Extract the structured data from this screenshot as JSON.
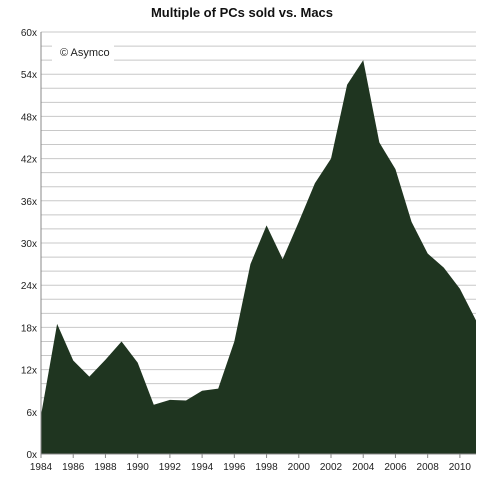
{
  "chart_data": {
    "type": "area",
    "title": "Multiple of PCs sold vs. Macs",
    "annotation": "© Asymco",
    "xlabel": "",
    "ylabel": "",
    "x": [
      1984,
      1985,
      1986,
      1987,
      1988,
      1989,
      1990,
      1991,
      1992,
      1993,
      1994,
      1995,
      1996,
      1997,
      1998,
      1999,
      2000,
      2001,
      2002,
      2003,
      2004,
      2005,
      2006,
      2007,
      2008,
      2009,
      2010,
      2011
    ],
    "series": [
      {
        "name": "",
        "values": [
          5.5,
          18.5,
          13.3,
          11,
          13.4,
          16,
          13,
          7,
          7.7,
          7.6,
          9,
          9.3,
          16,
          27,
          32.5,
          27.7,
          33,
          38.5,
          42,
          52.5,
          56,
          44.3,
          40.5,
          33,
          28.5,
          26.5,
          23.5,
          19
        ]
      }
    ],
    "xlim": [
      1984,
      2011
    ],
    "ylim": [
      0,
      60
    ],
    "y_ticks": [
      0,
      6,
      12,
      18,
      24,
      30,
      36,
      42,
      48,
      54,
      60
    ],
    "y_tick_labels": [
      "0x",
      "6x",
      "12x",
      "18x",
      "24x",
      "30x",
      "36x",
      "42x",
      "48x",
      "54x",
      "60x"
    ],
    "x_ticks": [
      1984,
      1986,
      1988,
      1990,
      1992,
      1994,
      1996,
      1998,
      2000,
      2002,
      2004,
      2006,
      2008,
      2010
    ],
    "x_tick_labels": [
      "1984",
      "1986",
      "1988",
      "1990",
      "1992",
      "1994",
      "1996",
      "1998",
      "2000",
      "2002",
      "2004",
      "2006",
      "2008",
      "2010"
    ],
    "grid": true,
    "minor_grid_step": 2,
    "colors": {
      "fill": "#1f3520",
      "grid": "#c8c8c8",
      "axis": "#888888"
    }
  }
}
